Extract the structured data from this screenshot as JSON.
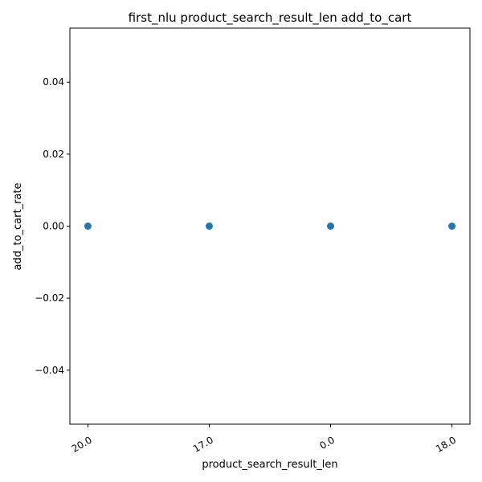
{
  "chart_data": {
    "type": "scatter",
    "title": "first_nlu product_search_result_len add_to_cart",
    "xlabel": "product_search_result_len",
    "ylabel": "add_to_cart_rate",
    "categories": [
      "20.0",
      "17.0",
      "0.0",
      "18.0"
    ],
    "series": [
      {
        "values": [
          0.0,
          0.0,
          0.0,
          0.0
        ]
      }
    ],
    "ylim": [
      -0.055,
      0.055
    ],
    "yticks": [
      "−0.04",
      "−0.02",
      "0.00",
      "0.02",
      "0.04"
    ],
    "ytick_values": [
      -0.04,
      -0.02,
      0.0,
      0.02,
      0.04
    ],
    "grid": false,
    "marker_color": "#1f77b4"
  }
}
